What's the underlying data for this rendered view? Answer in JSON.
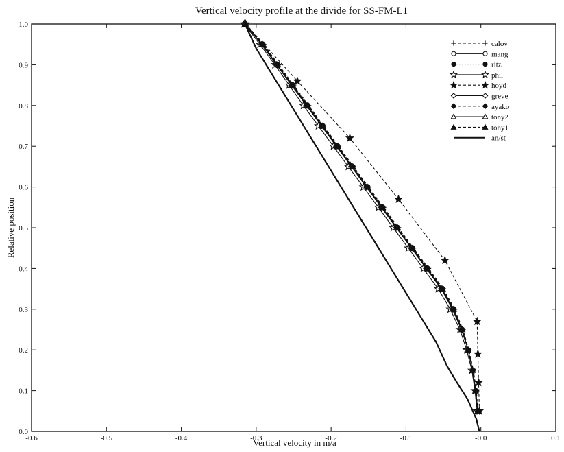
{
  "chart_data": {
    "type": "line",
    "title": "Vertical velocity profile at the divide for SS-FM-L1",
    "xlabel": "Vertical velocity in m/a",
    "ylabel": "Relative position",
    "xlim": [
      -0.6,
      0.1
    ],
    "ylim": [
      0.0,
      1.0
    ],
    "xticks": [
      -0.6,
      -0.5,
      -0.4,
      -0.3,
      -0.2,
      -0.1,
      -0.0,
      0.1
    ],
    "xtick_labels": [
      "-0.6",
      "-0.5",
      "-0.4",
      "-0.3",
      "-0.2",
      "-0.1",
      "-0.0",
      "0.1"
    ],
    "yticks": [
      0.0,
      0.1,
      0.2,
      0.3,
      0.4,
      0.5,
      0.6,
      0.7,
      0.8,
      0.9,
      1.0
    ],
    "ytick_labels": [
      "0.0",
      "0.1",
      "0.2",
      "0.3",
      "0.4",
      "0.5",
      "0.6",
      "0.7",
      "0.8",
      "0.9",
      "1.0"
    ],
    "grid": false,
    "legend_position": "top-right",
    "series": [
      {
        "name": "calov",
        "marker": "plus",
        "line": "dashed",
        "color": "#111111",
        "x": [
          -0.314,
          -0.29,
          -0.27,
          -0.25,
          -0.23,
          -0.21,
          -0.19,
          -0.17,
          -0.15,
          -0.13,
          -0.11,
          -0.09,
          -0.07,
          -0.05,
          -0.035,
          -0.024,
          -0.016,
          -0.01,
          -0.006,
          -0.004
        ],
        "y": [
          1.0,
          0.95,
          0.9,
          0.85,
          0.8,
          0.75,
          0.7,
          0.65,
          0.6,
          0.55,
          0.5,
          0.45,
          0.4,
          0.35,
          0.3,
          0.25,
          0.2,
          0.15,
          0.1,
          0.05
        ]
      },
      {
        "name": "mang",
        "marker": "circle-open",
        "line": "solid",
        "color": "#111111",
        "x": [
          -0.316,
          -0.292,
          -0.272,
          -0.252,
          -0.232,
          -0.212,
          -0.192,
          -0.172,
          -0.152,
          -0.132,
          -0.112,
          -0.092,
          -0.072,
          -0.052,
          -0.037,
          -0.025,
          -0.017,
          -0.011,
          -0.007,
          -0.004
        ],
        "y": [
          1.0,
          0.95,
          0.9,
          0.85,
          0.8,
          0.75,
          0.7,
          0.65,
          0.6,
          0.55,
          0.5,
          0.45,
          0.4,
          0.35,
          0.3,
          0.25,
          0.2,
          0.15,
          0.1,
          0.05
        ]
      },
      {
        "name": "ritz",
        "marker": "circle-filled",
        "line": "dotted",
        "color": "#111111",
        "x": [
          -0.315,
          -0.291,
          -0.271,
          -0.251,
          -0.231,
          -0.211,
          -0.191,
          -0.171,
          -0.151,
          -0.131,
          -0.111,
          -0.091,
          -0.071,
          -0.051,
          -0.036,
          -0.025,
          -0.017,
          -0.011,
          -0.007,
          -0.004
        ],
        "y": [
          1.0,
          0.95,
          0.9,
          0.85,
          0.8,
          0.75,
          0.7,
          0.65,
          0.6,
          0.55,
          0.5,
          0.45,
          0.4,
          0.35,
          0.3,
          0.25,
          0.2,
          0.15,
          0.1,
          0.05
        ]
      },
      {
        "name": "phil",
        "marker": "star-open",
        "line": "solid",
        "color": "#111111",
        "x": [
          -0.316,
          -0.295,
          -0.275,
          -0.256,
          -0.237,
          -0.217,
          -0.197,
          -0.177,
          -0.157,
          -0.137,
          -0.117,
          -0.097,
          -0.077,
          -0.057,
          -0.041,
          -0.028,
          -0.019,
          -0.012,
          -0.008,
          -0.005
        ],
        "y": [
          1.0,
          0.95,
          0.9,
          0.85,
          0.8,
          0.75,
          0.7,
          0.65,
          0.6,
          0.55,
          0.5,
          0.45,
          0.4,
          0.35,
          0.3,
          0.25,
          0.2,
          0.15,
          0.1,
          0.05
        ]
      },
      {
        "name": "hoyd",
        "marker": "star-filled",
        "line": "dashed",
        "color": "#111111",
        "x": [
          -0.314,
          -0.245,
          -0.175,
          -0.11,
          -0.048,
          -0.005,
          -0.004,
          -0.003,
          -0.002
        ],
        "y": [
          1.0,
          0.86,
          0.72,
          0.57,
          0.42,
          0.27,
          0.19,
          0.12,
          0.05
        ]
      },
      {
        "name": "greve",
        "marker": "diamond-open",
        "line": "solid",
        "color": "#111111",
        "x": [
          -0.315,
          -0.293,
          -0.273,
          -0.253,
          -0.233,
          -0.213,
          -0.193,
          -0.173,
          -0.153,
          -0.133,
          -0.113,
          -0.093,
          -0.073,
          -0.053,
          -0.038,
          -0.026,
          -0.017,
          -0.011,
          -0.007,
          -0.004
        ],
        "y": [
          1.0,
          0.95,
          0.9,
          0.85,
          0.8,
          0.75,
          0.7,
          0.65,
          0.6,
          0.55,
          0.5,
          0.45,
          0.4,
          0.35,
          0.3,
          0.25,
          0.2,
          0.15,
          0.1,
          0.05
        ]
      },
      {
        "name": "ayako",
        "marker": "diamond-filled",
        "line": "dashed",
        "color": "#111111",
        "x": [
          -0.314,
          -0.292,
          -0.272,
          -0.252,
          -0.232,
          -0.212,
          -0.192,
          -0.172,
          -0.152,
          -0.132,
          -0.112,
          -0.092,
          -0.072,
          -0.052,
          -0.037,
          -0.025,
          -0.017,
          -0.011,
          -0.007,
          -0.004
        ],
        "y": [
          1.0,
          0.95,
          0.9,
          0.85,
          0.8,
          0.75,
          0.7,
          0.65,
          0.6,
          0.55,
          0.5,
          0.45,
          0.4,
          0.35,
          0.3,
          0.25,
          0.2,
          0.15,
          0.1,
          0.05
        ]
      },
      {
        "name": "tony2",
        "marker": "triangle-open",
        "line": "solid",
        "color": "#111111",
        "x": [
          -0.315,
          -0.292,
          -0.272,
          -0.252,
          -0.232,
          -0.212,
          -0.192,
          -0.172,
          -0.152,
          -0.132,
          -0.112,
          -0.092,
          -0.072,
          -0.052,
          -0.037,
          -0.025,
          -0.017,
          -0.011,
          -0.007,
          -0.004
        ],
        "y": [
          1.0,
          0.95,
          0.9,
          0.85,
          0.8,
          0.75,
          0.7,
          0.65,
          0.6,
          0.55,
          0.5,
          0.45,
          0.4,
          0.35,
          0.3,
          0.25,
          0.2,
          0.15,
          0.1,
          0.05
        ]
      },
      {
        "name": "tony1",
        "marker": "triangle-filled",
        "line": "dashed",
        "color": "#111111",
        "x": [
          -0.314,
          -0.291,
          -0.271,
          -0.251,
          -0.231,
          -0.211,
          -0.191,
          -0.171,
          -0.151,
          -0.131,
          -0.111,
          -0.091,
          -0.071,
          -0.051,
          -0.036,
          -0.025,
          -0.017,
          -0.011,
          -0.007,
          -0.004
        ],
        "y": [
          1.0,
          0.95,
          0.9,
          0.85,
          0.8,
          0.75,
          0.7,
          0.65,
          0.6,
          0.55,
          0.5,
          0.45,
          0.4,
          0.35,
          0.3,
          0.25,
          0.2,
          0.15,
          0.1,
          0.05
        ]
      },
      {
        "name": "an/st",
        "marker": "none",
        "line": "solid-bold",
        "color": "#111111",
        "x": [
          -0.315,
          -0.3,
          -0.28,
          -0.26,
          -0.24,
          -0.22,
          -0.2,
          -0.18,
          -0.16,
          -0.14,
          -0.12,
          -0.1,
          -0.08,
          -0.06,
          -0.045,
          -0.032,
          -0.018,
          -0.006,
          -0.002
        ],
        "y": [
          1.0,
          0.94,
          0.88,
          0.82,
          0.76,
          0.7,
          0.64,
          0.58,
          0.52,
          0.46,
          0.4,
          0.34,
          0.28,
          0.22,
          0.16,
          0.12,
          0.08,
          0.03,
          0.0
        ]
      }
    ]
  }
}
